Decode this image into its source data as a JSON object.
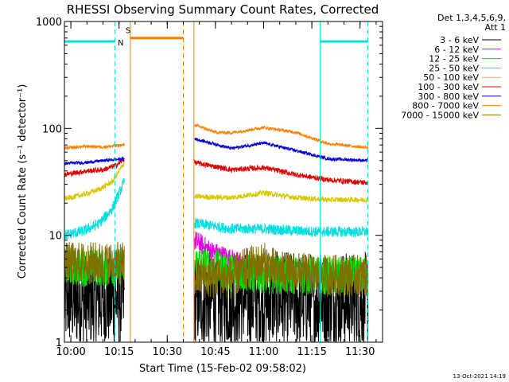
{
  "chart_data": {
    "type": "line",
    "title": "RHESSI Observing Summary Count Rates, Corrected",
    "ylabel": "Corrected Count Rate (s⁻¹ detector⁻¹)",
    "xlabel": "Start Time (15-Feb-02 09:58:02)",
    "footer": "13-Oct-2021 14:19",
    "yscale": "log",
    "ylim": [
      1,
      1000
    ],
    "xlim_minutes": [
      -2,
      97
    ],
    "y_ticks": [
      {
        "value": 1,
        "label": "1"
      },
      {
        "value": 10,
        "label": "10"
      },
      {
        "value": 100,
        "label": "100"
      },
      {
        "value": 1000,
        "label": "1000"
      }
    ],
    "x_ticks": [
      {
        "minute": 0,
        "label": "10:00"
      },
      {
        "minute": 15,
        "label": "10:15"
      },
      {
        "minute": 30,
        "label": "10:30"
      },
      {
        "minute": 45,
        "label": "10:45"
      },
      {
        "minute": 60,
        "label": "11:00"
      },
      {
        "minute": 75,
        "label": "11:15"
      },
      {
        "minute": 90,
        "label": "11:30"
      }
    ],
    "legend_header": [
      "Det 1,3,4,5,6,9,",
      "Att 1"
    ],
    "legend": [
      {
        "label": "3 - 6 keV",
        "color": "#000000"
      },
      {
        "label": "6 - 12 keV",
        "color": "#e000e0"
      },
      {
        "label": "12 - 25 keV",
        "color": "#00e000"
      },
      {
        "label": "25 - 50 keV",
        "color": "#00e0e0"
      },
      {
        "label": "50 - 100 keV",
        "color": "#d8c800"
      },
      {
        "label": "100 - 300 keV",
        "color": "#e00000"
      },
      {
        "label": "300 - 800 keV",
        "color": "#0000d8"
      },
      {
        "label": "800 - 7000 keV",
        "color": "#ff8000"
      },
      {
        "label": "7000 - 15000 keV",
        "color": "#807000"
      }
    ],
    "segments_minutes": [
      [
        -2,
        16.7
      ],
      [
        38.5,
        92.5
      ]
    ],
    "series": [
      {
        "name": "3 - 6 keV",
        "color": "#000000",
        "noise": 0.45,
        "points": [
          [
            -2,
            2.5
          ],
          [
            5,
            2.5
          ],
          [
            10,
            2.5
          ],
          [
            16.7,
            2.5
          ],
          [
            38.5,
            2.5
          ],
          [
            50,
            2.5
          ],
          [
            60,
            2.5
          ],
          [
            70,
            2.5
          ],
          [
            80,
            2.5
          ],
          [
            92.5,
            2.5
          ]
        ]
      },
      {
        "name": "6 - 12 keV",
        "color": "#e000e0",
        "noise": 0.1,
        "points": [
          [
            38.5,
            9
          ],
          [
            44,
            7
          ],
          [
            50,
            6
          ],
          [
            55,
            5
          ],
          [
            60,
            4.5
          ],
          [
            70,
            4.5
          ],
          [
            80,
            4.5
          ],
          [
            92.5,
            4.5
          ]
        ]
      },
      {
        "name": "12 - 25 keV",
        "color": "#00e000",
        "noise": 0.18,
        "points": [
          [
            -2,
            5
          ],
          [
            8,
            5
          ],
          [
            16.7,
            5
          ],
          [
            38.5,
            5.5
          ],
          [
            50,
            4.5
          ],
          [
            60,
            4.3
          ],
          [
            70,
            4.2
          ],
          [
            80,
            4.2
          ],
          [
            92.5,
            4.2
          ]
        ]
      },
      {
        "name": "25 - 50 keV",
        "color": "#00e0e0",
        "noise": 0.05,
        "points": [
          [
            -2,
            10
          ],
          [
            4,
            11
          ],
          [
            9,
            13
          ],
          [
            13,
            18
          ],
          [
            16.7,
            32
          ],
          [
            38.5,
            13
          ],
          [
            50,
            11.5
          ],
          [
            60,
            11.5
          ],
          [
            70,
            11
          ],
          [
            80,
            10.8
          ],
          [
            92.5,
            10.8
          ]
        ]
      },
      {
        "name": "50 - 100 keV",
        "color": "#d8c800",
        "noise": 0.025,
        "points": [
          [
            -2,
            22
          ],
          [
            4,
            24
          ],
          [
            9,
            27
          ],
          [
            13,
            32
          ],
          [
            16.7,
            48
          ],
          [
            38.5,
            23
          ],
          [
            50,
            22.5
          ],
          [
            60,
            25
          ],
          [
            70,
            22.5
          ],
          [
            80,
            21.5
          ],
          [
            92.5,
            21.5
          ]
        ]
      },
      {
        "name": "100 - 300 keV",
        "color": "#e00000",
        "noise": 0.025,
        "points": [
          [
            -2,
            37
          ],
          [
            5,
            40
          ],
          [
            10,
            41
          ],
          [
            14,
            45
          ],
          [
            16.7,
            52
          ],
          [
            38.5,
            48
          ],
          [
            50,
            41
          ],
          [
            60,
            43
          ],
          [
            70,
            37
          ],
          [
            80,
            33
          ],
          [
            92.5,
            31
          ]
        ]
      },
      {
        "name": "300 - 800 keV",
        "color": "#0000d8",
        "noise": 0.015,
        "points": [
          [
            -2,
            47
          ],
          [
            5,
            48
          ],
          [
            10,
            50
          ],
          [
            16.7,
            52
          ],
          [
            38.5,
            80
          ],
          [
            50,
            65
          ],
          [
            60,
            73
          ],
          [
            70,
            62
          ],
          [
            80,
            52
          ],
          [
            92.5,
            50
          ]
        ]
      },
      {
        "name": "800 - 7000 keV",
        "color": "#ff8000",
        "noise": 0.015,
        "points": [
          [
            -2,
            65
          ],
          [
            5,
            68
          ],
          [
            10,
            67
          ],
          [
            16.7,
            70
          ],
          [
            38.5,
            108
          ],
          [
            45,
            92
          ],
          [
            50,
            91
          ],
          [
            60,
            102
          ],
          [
            70,
            92
          ],
          [
            80,
            72
          ],
          [
            92.5,
            66
          ]
        ]
      },
      {
        "name": "7000 - 15000 keV",
        "color": "#807000",
        "noise": 0.2,
        "points": [
          [
            -2,
            5.5
          ],
          [
            16.7,
            5.5
          ],
          [
            38.5,
            4
          ],
          [
            50,
            4
          ],
          [
            55,
            5
          ],
          [
            60,
            5.5
          ],
          [
            65,
            4.5
          ],
          [
            80,
            4.2
          ],
          [
            92.5,
            4.2
          ]
        ]
      }
    ],
    "vertical_markers": [
      {
        "minute": 13.7,
        "color": "#00e0e0",
        "style": "dashed"
      },
      {
        "minute": 18.5,
        "color": "#ff8000",
        "style": "solid"
      },
      {
        "minute": 35.0,
        "color": "#ff8000",
        "style": "dashed"
      },
      {
        "minute": 38.3,
        "color": "#ff8000",
        "style": "solid"
      },
      {
        "minute": 77.6,
        "color": "#00e0e0",
        "style": "solid"
      },
      {
        "minute": 92.4,
        "color": "#00e0e0",
        "style": "dashed"
      }
    ],
    "top_bars": [
      {
        "from": -2,
        "to": 13.7,
        "value": 650,
        "color": "#00e0e0"
      },
      {
        "from": 18.5,
        "to": 35.0,
        "value": 700,
        "color": "#ff8000"
      },
      {
        "from": 77.6,
        "to": 92.4,
        "value": 650,
        "color": "#00e0e0"
      }
    ],
    "markers": [
      {
        "text": "N",
        "minute": 15.5,
        "value": 600,
        "color": "#00e0e0"
      },
      {
        "text": "S",
        "minute": 17.8,
        "value": 780,
        "color": "#ff8000"
      }
    ]
  }
}
